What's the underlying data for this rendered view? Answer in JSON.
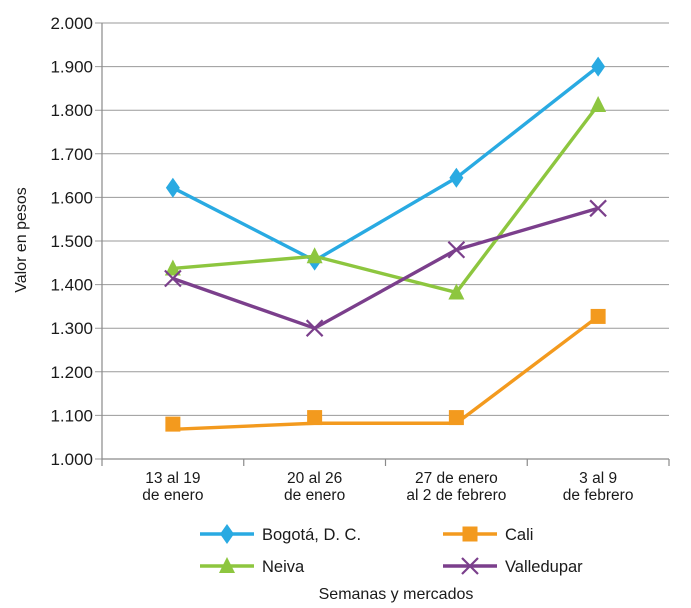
{
  "chart_data": {
    "type": "line",
    "categories": [
      [
        "13 al 19",
        "de enero"
      ],
      [
        "20 al 26",
        "de enero"
      ],
      [
        "27 de enero",
        "al 2 de febrero"
      ],
      [
        "3 al 9",
        "de febrero"
      ]
    ],
    "ylabel": "Valor en pesos",
    "xlabel": "Semanas y mercados",
    "ylim": [
      1000,
      2000
    ],
    "yticks": [
      1000,
      1100,
      1200,
      1300,
      1400,
      1500,
      1600,
      1700,
      1800,
      1900,
      2000
    ],
    "ytick_labels": [
      "1.000",
      "1.100",
      "1.200",
      "1.300",
      "1.400",
      "1.500",
      "1.600",
      "1.700",
      "1.800",
      "1.900",
      "2.000"
    ],
    "grid": "horizontal",
    "legend_position": "bottom",
    "series": [
      {
        "name": "Bogotá, D. C.",
        "values": [
          1622,
          1455,
          1645,
          1900
        ],
        "color": "#29aae2",
        "marker": "diamond"
      },
      {
        "name": "Cali",
        "values": [
          1080,
          1095,
          1095,
          1327
        ],
        "line_values": [
          1068,
          1082,
          1082,
          1327
        ],
        "color": "#f39a1e",
        "marker": "square"
      },
      {
        "name": "Neiva",
        "values": [
          1437,
          1465,
          1382,
          1812
        ],
        "color": "#8dc63f",
        "marker": "triangle"
      },
      {
        "name": "Valledupar",
        "values": [
          1414,
          1300,
          1480,
          1575
        ],
        "color": "#7b3f8c",
        "marker": "x"
      }
    ]
  }
}
